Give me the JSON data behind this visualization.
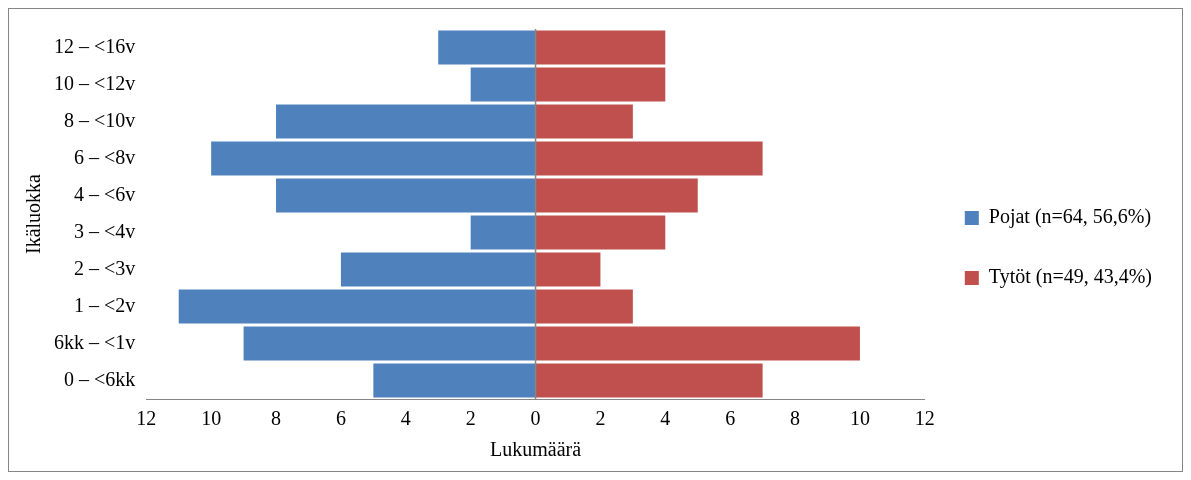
{
  "chart_data": {
    "type": "bar",
    "orientation": "horizontal",
    "stacked": true,
    "xlabel": "Lukumäärä",
    "ylabel": "Ikäluokka",
    "categories": [
      "12 – <16v",
      "10 – <12v",
      "8 – <10v",
      "6 – <8v",
      "4 – <6v",
      "3 – <4v",
      "2 – <3v",
      "1 – <2v",
      "6kk – <1v",
      "0 – <6kk"
    ],
    "series": [
      {
        "name": "Pojat (n=64, 56,6%)",
        "color": "#4f81bd",
        "values": [
          -3,
          -2,
          -8,
          -10,
          -8,
          -2,
          -6,
          -11,
          -9,
          -5
        ]
      },
      {
        "name": "Tytöt (n=49, 43,4%)",
        "color": "#c0504d",
        "values": [
          4,
          4,
          3,
          7,
          5,
          4,
          2,
          3,
          10,
          7
        ]
      }
    ],
    "xlim": [
      -12,
      12
    ],
    "xticks": [
      {
        "value": -12,
        "label": "12"
      },
      {
        "value": -10,
        "label": "10"
      },
      {
        "value": -8,
        "label": "8"
      },
      {
        "value": -6,
        "label": "6"
      },
      {
        "value": -4,
        "label": "4"
      },
      {
        "value": -2,
        "label": "2"
      },
      0,
      2,
      4,
      6,
      8,
      10,
      12
    ],
    "ref_lines": [
      {
        "axis": "x",
        "value": 0,
        "color": "#868686"
      }
    ],
    "grid": false,
    "legend": "right"
  }
}
